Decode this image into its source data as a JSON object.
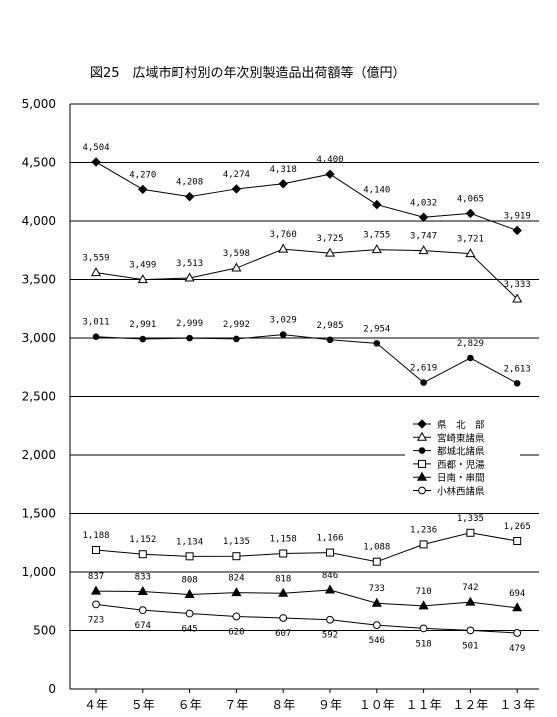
{
  "chart_data": {
    "type": "line",
    "title": "図25　広域市町村別の年次別製造品出荷額等（億円）",
    "xlabel": "",
    "ylabel": "",
    "ylim": [
      0,
      5000
    ],
    "yticks": [
      0,
      500,
      1000,
      1500,
      2000,
      2500,
      3000,
      3500,
      4000,
      4500,
      5000
    ],
    "ytick_labels": [
      "0",
      "500",
      "1,000",
      "1,500",
      "2,000",
      "2,500",
      "3,000",
      "3,500",
      "4,000",
      "4,500",
      "5,000"
    ],
    "categories": [
      "４年",
      "５年",
      "６年",
      "７年",
      "８年",
      "９年",
      "１０年",
      "１１年",
      "１２年",
      "１３年"
    ],
    "grid": "horizontal",
    "axis_break": [
      2000,
      1500
    ],
    "legend_position": "right-middle",
    "series": [
      {
        "name": "県　北　部",
        "marker": "diamond-filled",
        "label_pos": "above",
        "values": [
          4504,
          4270,
          4208,
          4274,
          4318,
          4400,
          4140,
          4032,
          4065,
          3919
        ],
        "labels": [
          "4,504",
          "4,270",
          "4,208",
          "4,274",
          "4,318",
          "4,400",
          "4,140",
          "4,032",
          "4,065",
          "3,919"
        ]
      },
      {
        "name": "宮崎東諸県",
        "marker": "triangle-open",
        "label_pos": "above",
        "values": [
          3559,
          3499,
          3513,
          3598,
          3760,
          3725,
          3755,
          3747,
          3721,
          3333
        ],
        "labels": [
          "3,559",
          "3,499",
          "3,513",
          "3,598",
          "3,760",
          "3,725",
          "3,755",
          "3,747",
          "3,721",
          "3,333"
        ]
      },
      {
        "name": "都城北諸県",
        "marker": "circle-filled",
        "label_pos": "above",
        "values": [
          3011,
          2991,
          2999,
          2992,
          3029,
          2985,
          2954,
          2619,
          2829,
          2613
        ],
        "labels": [
          "3,011",
          "2,991",
          "2,999",
          "2,992",
          "3,029",
          "2,985",
          "2,954",
          "2,619",
          "2,829",
          "2,613"
        ]
      },
      {
        "name": "西都・児湯",
        "marker": "square-open",
        "label_pos": "above",
        "values": [
          1188,
          1152,
          1134,
          1135,
          1158,
          1166,
          1088,
          1236,
          1335,
          1265
        ],
        "labels": [
          "1,188",
          "1,152",
          "1,134",
          "1,135",
          "1,158",
          "1,166",
          "1,088",
          "1,236",
          "1,335",
          "1,265"
        ]
      },
      {
        "name": "日南・串間",
        "marker": "triangle-filled",
        "label_pos": "above",
        "values": [
          837,
          833,
          808,
          824,
          818,
          846,
          733,
          710,
          742,
          694
        ],
        "labels": [
          "837",
          "833",
          "808",
          "824",
          "818",
          "846",
          "733",
          "710",
          "742",
          "694"
        ]
      },
      {
        "name": "小林西諸県",
        "marker": "circle-open",
        "label_pos": "below",
        "values": [
          723,
          674,
          645,
          620,
          607,
          592,
          546,
          518,
          501,
          479
        ],
        "labels": [
          "723",
          "674",
          "645",
          "620",
          "607",
          "592",
          "546",
          "518",
          "501",
          "479"
        ]
      }
    ]
  }
}
